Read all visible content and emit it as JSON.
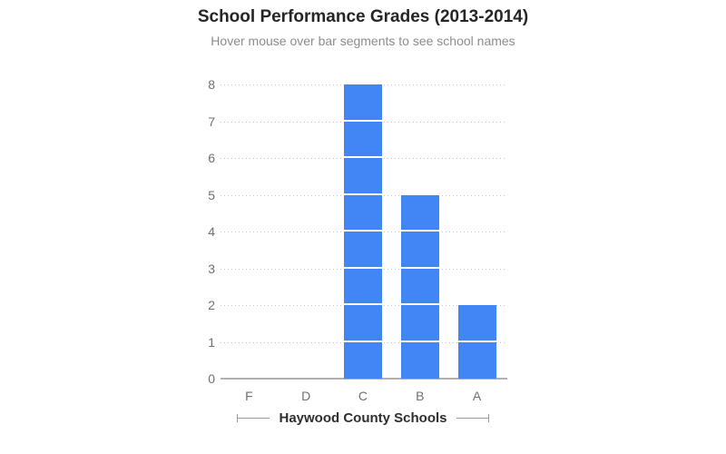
{
  "page": {
    "background": "#ffffff"
  },
  "chart_data": {
    "type": "bar",
    "variant": "stacked-unit-segments (each 1-unit segment = one school)",
    "title": "School Performance Grades (2013-2014)",
    "subtitle": "Hover mouse over bar segments to see school names",
    "categories": [
      "F",
      "D",
      "C",
      "B",
      "A"
    ],
    "values": [
      0,
      0,
      8,
      5,
      2
    ],
    "xlabel": "Haywood County Schools",
    "ylabel": "",
    "ylim": [
      0,
      8
    ],
    "yticks": [
      0,
      1,
      2,
      3,
      4,
      5,
      6,
      7,
      8
    ],
    "grid": "horizontal dotted gridlines at each integer, solid baseline at 0",
    "legend": "none",
    "colors": {
      "bar": "#4285f4",
      "segment_divider": "#ffffff",
      "title_text": "#262626",
      "subtitle_text": "#8c8c8c",
      "tick_text": "#6f6f6f",
      "gridline": "#c7c7c7",
      "axis_line": "#b0b0b0",
      "xlabel_text": "#2e2e2e",
      "xlabel_rule": "#999999"
    }
  }
}
